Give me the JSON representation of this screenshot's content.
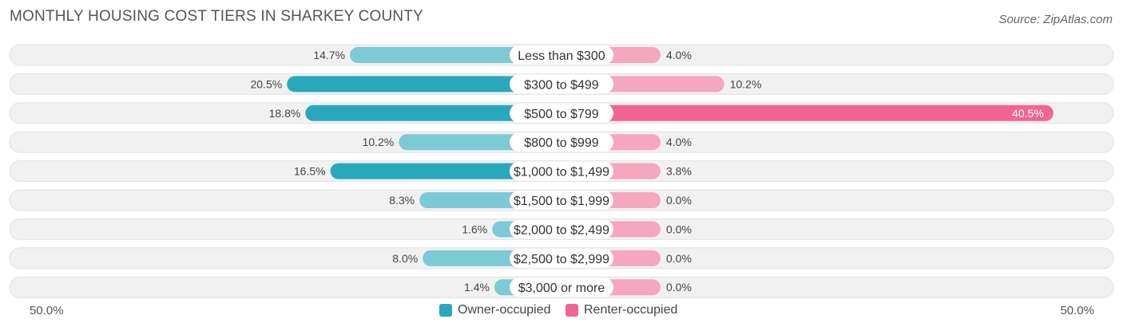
{
  "header": {
    "title": "MONTHLY HOUSING COST TIERS IN SHARKEY COUNTY",
    "source": "Source: ZipAtlas.com"
  },
  "axis": {
    "left_label": "50.0%",
    "right_label": "50.0%"
  },
  "legend": {
    "owner_label": "Owner-occupied",
    "renter_label": "Renter-occupied"
  },
  "colors": {
    "owner_strong": "#2aa8bb",
    "owner_light": "#7ccad5",
    "renter_strong": "#f06592",
    "renter_light": "#f5a7c0",
    "track": "#f1f1f1"
  },
  "chart_data": {
    "type": "bar",
    "title": "MONTHLY HOUSING COST TIERS IN SHARKEY COUNTY",
    "orientation": "horizontal-diverging",
    "axis_range": [
      -50,
      50
    ],
    "categories": [
      "Less than $300",
      "$300 to $499",
      "$500 to $799",
      "$800 to $999",
      "$1,000 to $1,499",
      "$1,500 to $1,999",
      "$2,000 to $2,499",
      "$2,500 to $2,999",
      "$3,000 or more"
    ],
    "series": [
      {
        "name": "Owner-occupied",
        "values": [
          14.7,
          20.5,
          18.8,
          10.2,
          16.5,
          8.3,
          1.6,
          8.0,
          1.4
        ],
        "labels": [
          "14.7%",
          "20.5%",
          "18.8%",
          "10.2%",
          "16.5%",
          "8.3%",
          "1.6%",
          "8.0%",
          "1.4%"
        ]
      },
      {
        "name": "Renter-occupied",
        "values": [
          4.0,
          10.2,
          40.5,
          4.0,
          3.8,
          0.0,
          0.0,
          0.0,
          0.0
        ],
        "labels": [
          "4.0%",
          "10.2%",
          "40.5%",
          "4.0%",
          "3.8%",
          "0.0%",
          "0.0%",
          "0.0%",
          "0.0%"
        ]
      }
    ]
  }
}
